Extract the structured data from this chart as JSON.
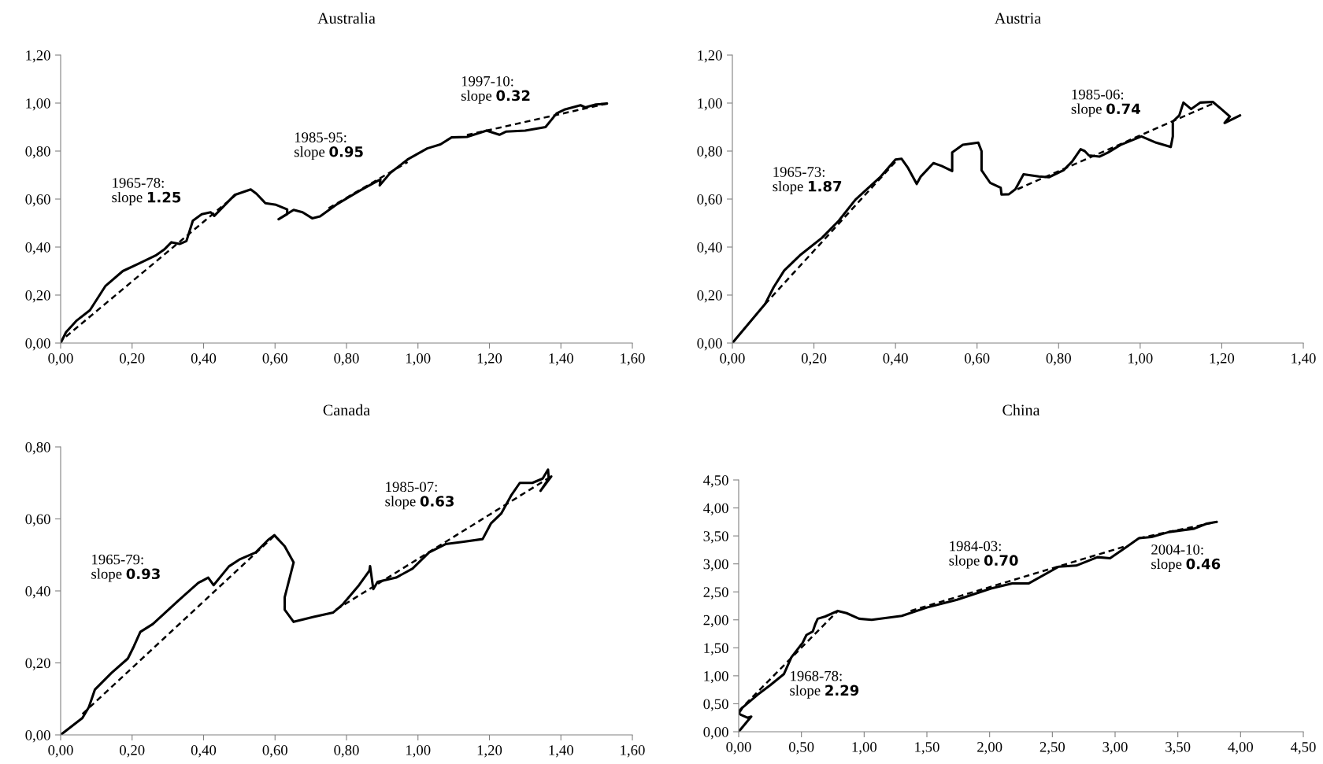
{
  "chart_data": [
    {
      "type": "line",
      "title": "Australia",
      "grid": false,
      "xlim": [
        0,
        1.6
      ],
      "ylim": [
        0,
        1.2
      ],
      "xticks": [
        {
          "value": 0,
          "label": "0,00"
        },
        {
          "value": 0.2,
          "label": "0,20"
        },
        {
          "value": 0.4,
          "label": "0,40"
        },
        {
          "value": 0.6,
          "label": "0,60"
        },
        {
          "value": 0.8,
          "label": "0,80"
        },
        {
          "value": 1.0,
          "label": "1,00"
        },
        {
          "value": 1.2,
          "label": "1,20"
        },
        {
          "value": 1.4,
          "label": "1,40"
        },
        {
          "value": 1.6,
          "label": "1,60"
        }
      ],
      "yticks": [
        {
          "value": 0,
          "label": "0,00"
        },
        {
          "value": 0.2,
          "label": "0,20"
        },
        {
          "value": 0.4,
          "label": "0,40"
        },
        {
          "value": 0.6,
          "label": "0,60"
        },
        {
          "value": 0.8,
          "label": "0,80"
        },
        {
          "value": 1.0,
          "label": "1,00"
        },
        {
          "value": 1.2,
          "label": "1,20"
        }
      ],
      "series": [
        {
          "color": "#000000",
          "line_style": "solid",
          "x": [
            0,
            0.015,
            0.045,
            0.082,
            0.125,
            0.174,
            0.217,
            0.266,
            0.29,
            0.31,
            0.333,
            0.352,
            0.37,
            0.395,
            0.42,
            0.43,
            0.487,
            0.532,
            0.548,
            0.573,
            0.603,
            0.634,
            0.634,
            0.61,
            0.652,
            0.677,
            0.704,
            0.726,
            0.775,
            0.836,
            0.885,
            0.895,
            0.893,
            0.922,
            0.971,
            1.026,
            1.063,
            1.094,
            1.137,
            1.192,
            1.228,
            1.246,
            1.3,
            1.357,
            1.388,
            1.412,
            1.455,
            1.468,
            1.498,
            1.529
          ],
          "values": [
            0,
            0.045,
            0.094,
            0.137,
            0.237,
            0.3,
            0.33,
            0.365,
            0.39,
            0.42,
            0.413,
            0.425,
            0.51,
            0.537,
            0.545,
            0.53,
            0.617,
            0.64,
            0.622,
            0.583,
            0.576,
            0.557,
            0.537,
            0.516,
            0.555,
            0.545,
            0.52,
            0.528,
            0.58,
            0.634,
            0.674,
            0.682,
            0.657,
            0.708,
            0.765,
            0.811,
            0.828,
            0.857,
            0.859,
            0.885,
            0.868,
            0.881,
            0.885,
            0.9,
            0.957,
            0.974,
            0.991,
            0.982,
            0.994,
            0.998
          ]
        },
        {
          "color": "#000000",
          "line_style": "dashed",
          "x": [
            0.015,
            0.49
          ],
          "values": [
            0.027,
            0.617
          ]
        },
        {
          "color": "#000000",
          "line_style": "dashed",
          "x": [
            0.75,
            0.971
          ],
          "values": [
            0.562,
            0.754
          ]
        },
        {
          "color": "#000000",
          "line_style": "dashed",
          "x": [
            1.137,
            1.529
          ],
          "values": [
            0.867,
            0.998
          ]
        }
      ],
      "annotations": [
        "1965-78:\nslope 1.25",
        "1985-95:\nslope 0.95",
        "1997-10:\nslope 0.32"
      ]
    },
    {
      "type": "line",
      "title": "Austria",
      "grid": false,
      "xlim": [
        0,
        1.4
      ],
      "ylim": [
        0,
        1.2
      ],
      "xticks": [
        {
          "value": 0,
          "label": "0,00"
        },
        {
          "value": 0.2,
          "label": "0,20"
        },
        {
          "value": 0.4,
          "label": "0,40"
        },
        {
          "value": 0.6,
          "label": "0,60"
        },
        {
          "value": 0.8,
          "label": "0,80"
        },
        {
          "value": 1.0,
          "label": "1,00"
        },
        {
          "value": 1.2,
          "label": "1,20"
        },
        {
          "value": 1.4,
          "label": "1,40"
        }
      ],
      "yticks": [
        {
          "value": 0,
          "label": "0,00"
        },
        {
          "value": 0.2,
          "label": "0,20"
        },
        {
          "value": 0.4,
          "label": "0,40"
        },
        {
          "value": 0.6,
          "label": "0,60"
        },
        {
          "value": 0.8,
          "label": "0,80"
        },
        {
          "value": 1.0,
          "label": "1,00"
        },
        {
          "value": 1.2,
          "label": "1,20"
        }
      ],
      "series": [
        {
          "color": "#000000",
          "line_style": "solid",
          "x": [
            0,
            0.08,
            0.101,
            0.127,
            0.168,
            0.22,
            0.261,
            0.302,
            0.364,
            0.4,
            0.415,
            0.431,
            0.452,
            0.462,
            0.493,
            0.513,
            0.539,
            0.539,
            0.565,
            0.603,
            0.611,
            0.611,
            0.632,
            0.658,
            0.66,
            0.678,
            0.694,
            0.714,
            0.751,
            0.776,
            0.812,
            0.833,
            0.854,
            0.864,
            0.874,
            0.9,
            0.921,
            0.952,
            1.003,
            1.039,
            1.075,
            1.08,
            1.08,
            1.096,
            1.106,
            1.125,
            1.147,
            1.178,
            1.199,
            1.22,
            1.207,
            1.245
          ],
          "values": [
            0,
            0.162,
            0.232,
            0.302,
            0.369,
            0.439,
            0.51,
            0.598,
            0.694,
            0.765,
            0.768,
            0.729,
            0.663,
            0.694,
            0.75,
            0.738,
            0.717,
            0.794,
            0.826,
            0.835,
            0.8,
            0.72,
            0.668,
            0.647,
            0.619,
            0.62,
            0.641,
            0.703,
            0.694,
            0.691,
            0.72,
            0.756,
            0.808,
            0.8,
            0.782,
            0.777,
            0.794,
            0.826,
            0.861,
            0.835,
            0.817,
            0.861,
            0.923,
            0.949,
            1.002,
            0.975,
            1.002,
            1.005,
            0.975,
            0.944,
            0.917,
            0.949
          ]
        },
        {
          "color": "#000000",
          "line_style": "dashed",
          "x": [
            0.08,
            0.405
          ],
          "values": [
            0.162,
            0.765
          ]
        },
        {
          "color": "#000000",
          "line_style": "dashed",
          "x": [
            0.699,
            1.184
          ],
          "values": [
            0.641,
            1.002
          ]
        }
      ],
      "annotations": [
        "1965-73:\nslope 1.87",
        "1985-06:\nslope 0.74"
      ]
    },
    {
      "type": "line",
      "title": "Canada",
      "grid": false,
      "xlim": [
        0,
        1.6
      ],
      "ylim": [
        0,
        0.8
      ],
      "xticks": [
        {
          "value": 0,
          "label": "0,00"
        },
        {
          "value": 0.2,
          "label": "0,20"
        },
        {
          "value": 0.4,
          "label": "0,40"
        },
        {
          "value": 0.6,
          "label": "0,60"
        },
        {
          "value": 0.8,
          "label": "0,80"
        },
        {
          "value": 1.0,
          "label": "1,00"
        },
        {
          "value": 1.2,
          "label": "1,20"
        },
        {
          "value": 1.4,
          "label": "1,40"
        },
        {
          "value": 1.6,
          "label": "1,60"
        }
      ],
      "yticks": [
        {
          "value": 0,
          "label": "0,00"
        },
        {
          "value": 0.2,
          "label": "0,20"
        },
        {
          "value": 0.4,
          "label": "0,40"
        },
        {
          "value": 0.6,
          "label": "0,60"
        },
        {
          "value": 0.8,
          "label": "0,80"
        }
      ],
      "series": [
        {
          "color": "#000000",
          "line_style": "solid",
          "x": [
            0,
            0.061,
            0.079,
            0.096,
            0.142,
            0.188,
            0.205,
            0.223,
            0.258,
            0.327,
            0.385,
            0.413,
            0.428,
            0.471,
            0.5,
            0.546,
            0.58,
            0.598,
            0.627,
            0.652,
            0.627,
            0.627,
            0.652,
            0.708,
            0.763,
            0.789,
            0.835,
            0.864,
            0.866,
            0.875,
            0.887,
            0.939,
            0.985,
            1.031,
            1.077,
            1.124,
            1.181,
            1.204,
            1.233,
            1.262,
            1.285,
            1.32,
            1.349,
            1.364,
            1.366,
            1.343,
            1.373
          ],
          "values": [
            0,
            0.047,
            0.077,
            0.126,
            0.172,
            0.212,
            0.246,
            0.286,
            0.308,
            0.371,
            0.422,
            0.437,
            0.416,
            0.468,
            0.487,
            0.507,
            0.541,
            0.555,
            0.524,
            0.479,
            0.382,
            0.348,
            0.314,
            0.328,
            0.34,
            0.362,
            0.416,
            0.456,
            0.469,
            0.405,
            0.425,
            0.437,
            0.462,
            0.507,
            0.53,
            0.536,
            0.544,
            0.587,
            0.615,
            0.667,
            0.7,
            0.7,
            0.712,
            0.737,
            0.712,
            0.678,
            0.718
          ]
        },
        {
          "color": "#000000",
          "line_style": "dashed",
          "x": [
            0.061,
            0.598
          ],
          "values": [
            0.058,
            0.553
          ]
        },
        {
          "color": "#000000",
          "line_style": "dashed",
          "x": [
            0.771,
            1.373
          ],
          "values": [
            0.348,
            0.718
          ]
        }
      ],
      "annotations": [
        "1965-79:\nslope 0.93",
        "1985-07:\nslope 0.63"
      ]
    },
    {
      "type": "line",
      "title": "China",
      "grid": false,
      "xlim": [
        0,
        4.5
      ],
      "ylim": [
        0,
        4.5
      ],
      "xticks": [
        {
          "value": 0,
          "label": "0,00"
        },
        {
          "value": 0.5,
          "label": "0,50"
        },
        {
          "value": 1.0,
          "label": "1,00"
        },
        {
          "value": 1.5,
          "label": "1,50"
        },
        {
          "value": 2.0,
          "label": "2,00"
        },
        {
          "value": 2.5,
          "label": "2,50"
        },
        {
          "value": 3.0,
          "label": "3,00"
        },
        {
          "value": 3.5,
          "label": "3,50"
        },
        {
          "value": 4.0,
          "label": "4,00"
        },
        {
          "value": 4.5,
          "label": "4,50"
        }
      ],
      "yticks": [
        {
          "value": 0,
          "label": "0,00"
        },
        {
          "value": 0.5,
          "label": "0,50"
        },
        {
          "value": 1.0,
          "label": "1,00"
        },
        {
          "value": 1.5,
          "label": "1,50"
        },
        {
          "value": 2.0,
          "label": "2,00"
        },
        {
          "value": 2.5,
          "label": "2,50"
        },
        {
          "value": 3.0,
          "label": "3,00"
        },
        {
          "value": 3.5,
          "label": "3,50"
        },
        {
          "value": 4.0,
          "label": "4,00"
        },
        {
          "value": 4.5,
          "label": "4,50"
        }
      ],
      "series": [
        {
          "color": "#000000",
          "line_style": "solid",
          "x": [
            0,
            0.1,
            0.07,
            0.02,
            0,
            0.03,
            0.15,
            0.25,
            0.36,
            0.42,
            0.51,
            0.54,
            0.59,
            0.61,
            0.63,
            0.69,
            0.79,
            0.86,
            0.96,
            1.06,
            1.3,
            1.5,
            1.74,
            2.01,
            2.18,
            2.31,
            2.55,
            2.69,
            2.86,
            2.96,
            3.09,
            3.19,
            3.29,
            3.43,
            3.63,
            3.73,
            3.81
          ],
          "values": [
            0,
            0.27,
            0.25,
            0.3,
            0.33,
            0.43,
            0.66,
            0.83,
            1.03,
            1.33,
            1.59,
            1.73,
            1.79,
            1.92,
            2.02,
            2.06,
            2.16,
            2.12,
            2.02,
            2.0,
            2.07,
            2.22,
            2.36,
            2.56,
            2.65,
            2.65,
            2.95,
            2.97,
            3.12,
            3.1,
            3.3,
            3.46,
            3.48,
            3.57,
            3.63,
            3.72,
            3.75
          ]
        },
        {
          "color": "#000000",
          "line_style": "dashed",
          "x": [
            0,
            0.79
          ],
          "values": [
            0.37,
            2.16
          ]
        },
        {
          "color": "#000000",
          "line_style": "dashed",
          "x": [
            1.37,
            3.09
          ],
          "values": [
            2.16,
            3.32
          ]
        },
        {
          "color": "#000000",
          "line_style": "dashed",
          "x": [
            3.19,
            3.81
          ],
          "values": [
            3.46,
            3.75
          ]
        }
      ],
      "annotations": [
        "1968-78:\nslope 2.29",
        "1984-03:\nslope 0.70",
        "2004-10:\nslope 0.46"
      ]
    }
  ]
}
